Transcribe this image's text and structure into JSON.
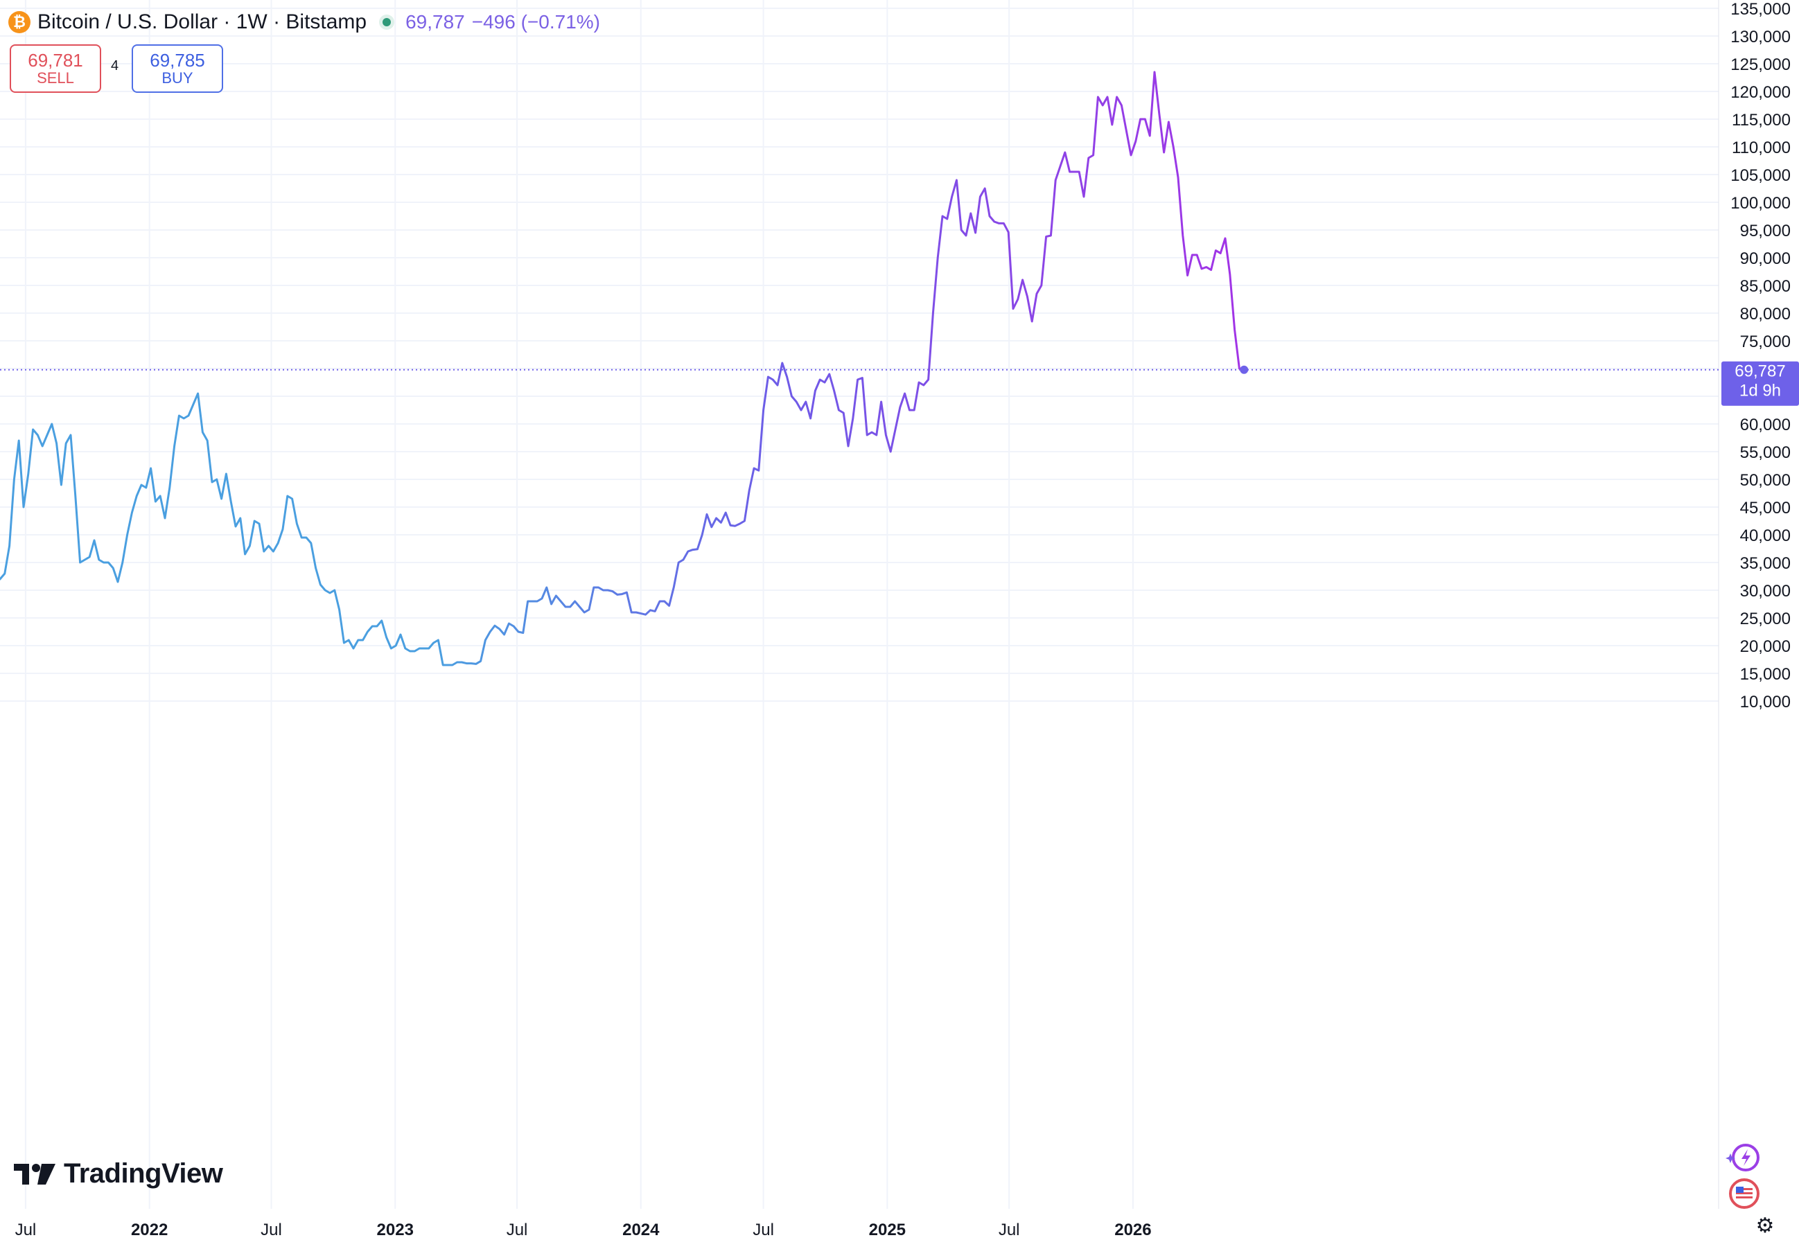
{
  "header": {
    "icon": "bitcoin-icon",
    "title": "Bitcoin / U.S. Dollar · 1W · Bitstamp",
    "last": "69,787",
    "change": "−496 (−0.71%)"
  },
  "trade": {
    "sell_price": "69,781",
    "sell_label": "SELL",
    "spread": "4",
    "buy_price": "69,785",
    "buy_label": "BUY"
  },
  "price_label": {
    "value": "69,787",
    "countdown": "1d 9h"
  },
  "branding": {
    "logo_text": "TradingView",
    "icons": [
      "lightning-icon",
      "us-flag-icon",
      "settings-icon"
    ]
  },
  "colors": {
    "line_old": "#4a9fe0",
    "line_mid": "#6d5ce7",
    "line_new": "#a233e6",
    "label_bg": "#6e61e9",
    "grid": "#f0f3fa"
  },
  "chart_data": {
    "type": "line",
    "title": "Bitcoin / U.S. Dollar · 1W · Bitstamp",
    "x_start": "2021-05-24",
    "interval": "1W",
    "x_ticks": [
      "Jul",
      "2022",
      "Jul",
      "2023",
      "Jul",
      "2024",
      "Jul",
      "2025",
      "Jul",
      "2026"
    ],
    "y_ticks": [
      "135,000",
      "130,000",
      "125,000",
      "120,000",
      "115,000",
      "110,000",
      "105,000",
      "100,000",
      "95,000",
      "90,000",
      "85,000",
      "80,000",
      "75,000",
      "70,000",
      "65,000",
      "60,000",
      "55,000",
      "50,000",
      "45,000",
      "40,000",
      "35,000",
      "30,000",
      "25,000",
      "20,000",
      "15,000",
      "10,000"
    ],
    "ylim": [
      7000,
      135000
    ],
    "axis_side": "right",
    "grid": true,
    "series": [
      {
        "values": [
          32000,
          33000,
          38000,
          50000,
          57000,
          45000,
          51000,
          59000,
          58000,
          56000,
          58000,
          60000,
          56500,
          49000,
          56500,
          58000,
          47000,
          35000,
          35500,
          36000,
          39000,
          35500,
          35000,
          35000,
          34000,
          31500,
          35000,
          40000,
          44000,
          47000,
          49000,
          48500,
          52000,
          46000,
          47000,
          43000,
          48500,
          56000,
          61500,
          61000,
          61500,
          63500,
          65500,
          58500,
          57000,
          49500,
          50000,
          46500,
          51000,
          46000,
          41500,
          43000,
          36500,
          38000,
          42500,
          42000,
          37000,
          38000,
          37000,
          38500,
          41000,
          47000,
          46500,
          42000,
          39500,
          39500,
          38500,
          34000,
          31000,
          30000,
          29500,
          30000,
          26500,
          20500,
          21000,
          19500,
          21000,
          21000,
          22500,
          23500,
          23500,
          24500,
          21500,
          19500,
          20000,
          22000,
          19500,
          19000,
          19000,
          19500,
          19500,
          19500,
          20500,
          21000,
          16500,
          16500,
          16500,
          17000,
          17000,
          16800,
          16800,
          16700,
          17200,
          21000,
          22500,
          23600,
          23000,
          22000,
          24000,
          23500,
          22500,
          22300,
          28000,
          28000,
          28000,
          28500,
          30500,
          27500,
          29000,
          28000,
          27000,
          27000,
          28000,
          27000,
          26000,
          26500,
          30500,
          30500,
          30000,
          30000,
          29800,
          29200,
          29300,
          29600,
          26000,
          26000,
          25800,
          25600,
          26400,
          26200,
          28000,
          28000,
          27200,
          30600,
          35000,
          35500,
          37000,
          37300,
          37400,
          40000,
          43700,
          41400,
          43000,
          42200,
          44000,
          41700,
          41600,
          42000,
          42500,
          48000,
          52000,
          51600,
          62500,
          68500,
          68000,
          67000,
          71000,
          68500,
          65000,
          64000,
          62500,
          64000,
          61000,
          66000,
          68000,
          67500,
          69000,
          66000,
          62500,
          62000,
          56000,
          61000,
          68000,
          68300,
          58000,
          58500,
          58000,
          64000,
          58000,
          55000,
          59000,
          63000,
          65500,
          62500,
          62500,
          67500,
          67000,
          68000,
          80000,
          90000,
          97500,
          97000,
          101000,
          104000,
          95000,
          94000,
          98000,
          94500,
          101000,
          102500,
          97500,
          96500,
          96200,
          96200,
          94600,
          80800,
          82500,
          86000,
          83000,
          78500,
          83500,
          85000,
          93800,
          94000,
          104000,
          106500,
          109000,
          105500,
          105500,
          105500,
          101000,
          108000,
          108500,
          119000,
          117500,
          119000,
          114000,
          119000,
          117500,
          113000,
          108500,
          111000,
          115000,
          115000,
          112000,
          123500,
          116000,
          109000,
          114500,
          110000,
          104500,
          94000,
          86800,
          90500,
          90500,
          88000,
          88300,
          87800,
          91300,
          90800,
          93500,
          87000,
          77000,
          70000,
          69787
        ]
      }
    ]
  }
}
